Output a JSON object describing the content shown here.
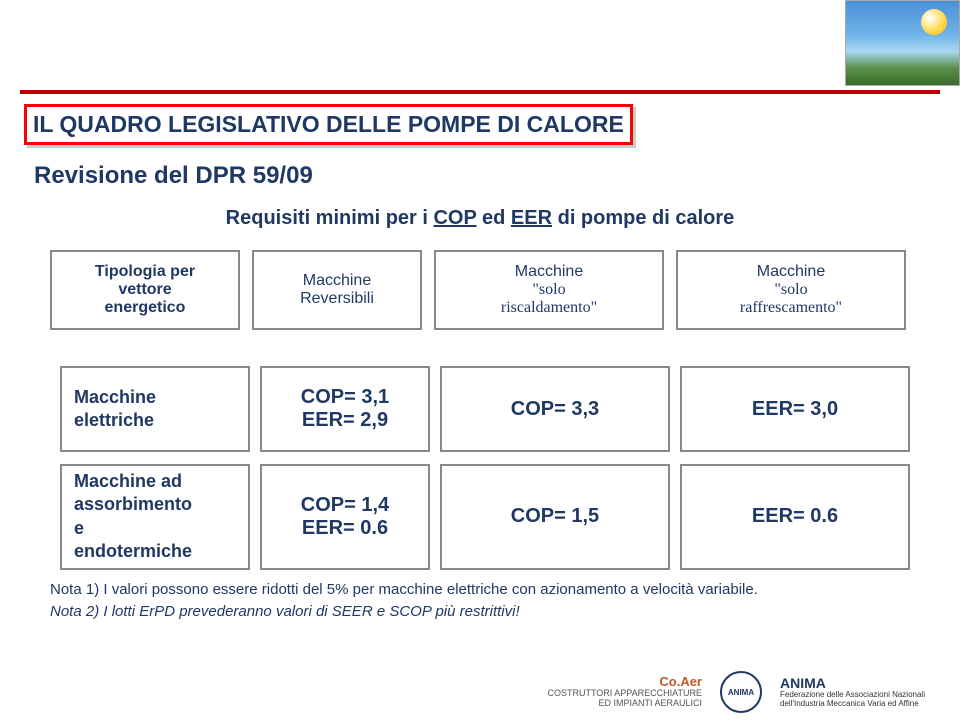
{
  "title": "IL QUADRO LEGISLATIVO DELLE POMPE DI CALORE",
  "subtitle": "Revisione del DPR 59/09",
  "requisiti": {
    "prefix": "Requisiti minimi per i ",
    "u1": "COP",
    "mid": " ed ",
    "u2": "EER",
    "suffix": " di pompe di calore"
  },
  "topHeaders": {
    "c0a": "Tipologia per",
    "c0b": "vettore",
    "c0c": "energetico",
    "c1a": "Macchine",
    "c1b": "Reversibili",
    "c2a": "Macchine",
    "c2b": "\"solo",
    "c2c": "riscaldamento\"",
    "c3a": "Macchine",
    "c3b": "\"solo",
    "c3c": "raffrescamento\""
  },
  "rows": [
    {
      "label1": "Macchine",
      "label2": "elettriche",
      "c1a": "COP= 3,1",
      "c1b": "EER= 2,9",
      "c2": "COP= 3,3",
      "c3": "EER= 3,0"
    },
    {
      "label1": "Macchine ad",
      "label2": "assorbimento",
      "label3": "e",
      "label4": "endotermiche",
      "c1a": "COP= 1,4",
      "c1b": "EER= 0.6",
      "c2": "COP= 1,5",
      "c3": "EER= 0.6"
    }
  ],
  "notes": {
    "n1": "Nota 1) I valori possono essere ridotti del 5% per macchine elettriche con azionamento a velocità variabile.",
    "n2": "Nota 2) I lotti ErPD prevederanno valori di SEER e SCOP più restrittivi!"
  },
  "footer": {
    "coaerBrand": "Co.Aer",
    "coaerLine1": "COSTRUTTORI APPARECCHIATURE",
    "coaerLine2": "ED IMPIANTI AERAULICI",
    "animaBadge": "ANIMA",
    "animaBig": "ANIMA",
    "animaLine1": "Federazione delle Associazioni Nazionali",
    "animaLine2": "dell'Industria Meccanica Varia ed Affine"
  }
}
